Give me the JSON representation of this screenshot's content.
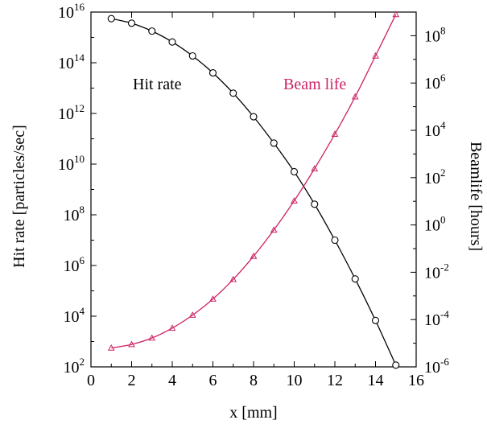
{
  "chart_data": {
    "type": "line",
    "xlabel": "x [mm]",
    "ylabel": "Hit rate [particles/sec]",
    "y2label": "Beamlife [hours]",
    "xlim": [
      0,
      16
    ],
    "xticks": [
      0,
      2,
      4,
      6,
      8,
      10,
      12,
      14,
      16
    ],
    "y_scale": "log",
    "ylim_exp": [
      2,
      16
    ],
    "yticks_exp": [
      2,
      4,
      6,
      8,
      10,
      12,
      14,
      16
    ],
    "y2_scale": "log",
    "y2lim_exp": [
      -6,
      9
    ],
    "y2ticks_exp": [
      -6,
      -4,
      -2,
      0,
      2,
      4,
      6,
      8
    ],
    "grid": false,
    "x": [
      1,
      2,
      3,
      4,
      5,
      6,
      7,
      8,
      9,
      10,
      11,
      12,
      13,
      14,
      15
    ],
    "series": [
      {
        "name": "Hit rate",
        "axis": "left",
        "color": "#000000",
        "marker": "circle",
        "y_exp": [
          15.74,
          15.56,
          15.25,
          14.82,
          14.27,
          13.6,
          12.8,
          11.87,
          10.83,
          9.7,
          8.42,
          7.0,
          5.47,
          3.83,
          2.07
        ]
      },
      {
        "name": "Beam life",
        "axis": "right",
        "color": "#cc2266",
        "marker": "triangle",
        "y_exp": [
          -5.2,
          -5.05,
          -4.78,
          -4.36,
          -3.81,
          -3.13,
          -2.3,
          -1.32,
          -0.21,
          1.02,
          2.38,
          3.84,
          5.42,
          7.15,
          8.9
        ]
      }
    ]
  }
}
